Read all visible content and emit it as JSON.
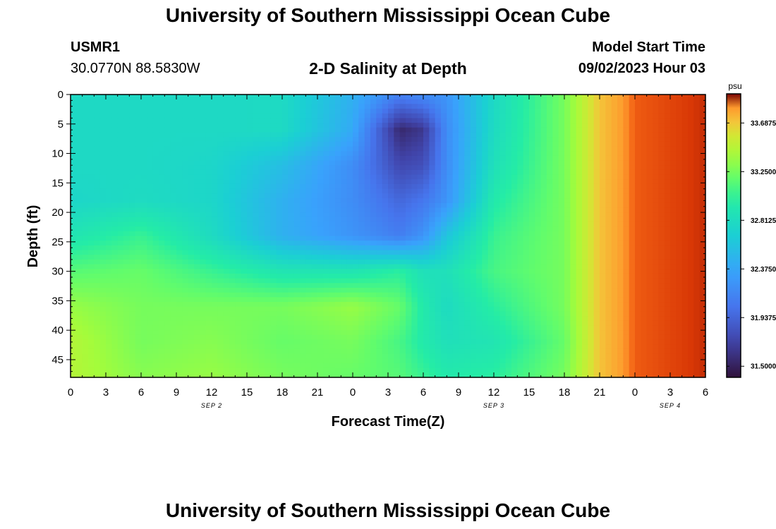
{
  "header": {
    "title": "University of Southern Mississippi Ocean Cube",
    "station": "USMR1",
    "coords": "30.0770N  88.5830W",
    "subtitle": "2-D Salinity at Depth",
    "start_label": "Model Start Time",
    "start_value": "09/02/2023 Hour 03"
  },
  "footer": {
    "title": "University of Southern Mississippi Ocean Cube"
  },
  "chart_data": {
    "type": "heatmap",
    "xlabel": "Forecast Time(Z)",
    "ylabel": "Depth (ft)",
    "x_ticks": [
      "0",
      "3",
      "6",
      "9",
      "12",
      "15",
      "18",
      "21",
      "0",
      "3",
      "6",
      "9",
      "12",
      "15",
      "18",
      "21",
      "0",
      "3",
      "6"
    ],
    "x_date_labels": [
      {
        "label": "SEP 2",
        "at_hour": 12
      },
      {
        "label": "SEP 3",
        "at_hour": 36
      },
      {
        "label": "SEP 4",
        "at_hour": 51
      }
    ],
    "x_range_hours": [
      0,
      54
    ],
    "y_ticks": [
      0,
      5,
      10,
      15,
      20,
      25,
      30,
      35,
      40,
      45
    ],
    "ylim": [
      0,
      48
    ],
    "y_inverted": true,
    "colorbar": {
      "unit": "psu",
      "ticks": [
        "31.5000",
        "31.9375",
        "32.3750",
        "32.8125",
        "33.2500",
        "33.6875"
      ],
      "range": [
        31.4,
        33.95
      ]
    },
    "grid": {
      "x_hours": [
        0,
        6,
        12,
        18,
        24,
        28,
        30,
        32,
        36,
        42,
        45,
        48,
        54
      ],
      "depths": [
        0,
        6,
        12,
        18,
        24,
        30,
        36,
        42,
        48
      ],
      "salinity": [
        [
          32.78,
          32.78,
          32.78,
          32.79,
          32.45,
          32.12,
          32.2,
          32.25,
          32.78,
          33.25,
          33.7,
          33.88,
          33.92
        ],
        [
          32.78,
          32.78,
          32.78,
          32.79,
          32.4,
          31.55,
          31.65,
          32.2,
          32.8,
          33.25,
          33.7,
          33.88,
          33.92
        ],
        [
          32.78,
          32.78,
          32.75,
          32.55,
          32.2,
          31.75,
          31.8,
          32.2,
          32.85,
          33.25,
          33.7,
          33.88,
          33.92
        ],
        [
          32.75,
          32.8,
          32.75,
          32.45,
          32.2,
          31.95,
          32.05,
          32.25,
          32.95,
          33.25,
          33.7,
          33.88,
          33.92
        ],
        [
          32.9,
          33.05,
          32.8,
          32.45,
          32.25,
          32.1,
          32.25,
          32.6,
          33.05,
          33.25,
          33.7,
          33.88,
          33.92
        ],
        [
          33.15,
          33.2,
          33.05,
          32.9,
          32.9,
          33.0,
          32.85,
          32.85,
          33.1,
          33.25,
          33.7,
          33.88,
          33.92
        ],
        [
          33.35,
          33.25,
          33.25,
          33.25,
          33.35,
          33.2,
          32.95,
          32.8,
          33.0,
          33.25,
          33.7,
          33.88,
          33.92
        ],
        [
          33.45,
          33.25,
          33.3,
          33.2,
          33.25,
          33.1,
          32.95,
          32.85,
          32.9,
          33.2,
          33.7,
          33.88,
          33.92
        ],
        [
          33.45,
          33.3,
          33.35,
          33.25,
          33.2,
          33.15,
          33.05,
          32.95,
          33.0,
          33.25,
          33.7,
          33.88,
          33.92
        ]
      ]
    }
  }
}
